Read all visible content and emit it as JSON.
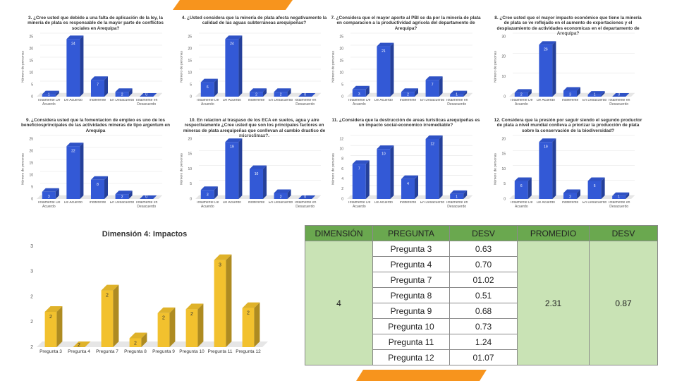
{
  "chart_data": [
    {
      "type": "bar",
      "title": "3. ¿Cree usted que debido a una falta de aplicación de la ley, la minería de plata es responsable de la mayor parte de conflictos sociales en Arequipa?",
      "y_label": "Número de personas",
      "categories": [
        "Totalmente De Acuerdo",
        "De Acuerdo",
        "Indiferente",
        "En Desacuerdo",
        "Totalmente en Desacuerdo"
      ],
      "values": [
        1,
        24,
        7,
        2,
        0
      ],
      "color": "#3359d6",
      "ylim": [
        0,
        25
      ],
      "yticks": [
        0,
        5,
        10,
        15,
        20,
        25
      ],
      "grid": true
    },
    {
      "type": "bar",
      "title": "4. ¿Usted considera que la minería de plata afecta negativamente la calidad de las aguas subterráneas arequipeñas?",
      "y_label": "Número de personas",
      "categories": [
        "Totalmente De Acuerdo",
        "De Acuerdo",
        "Indiferente",
        "En Desacuerdo",
        "Totalmente en Desacuerdo"
      ],
      "values": [
        6,
        24,
        2,
        2,
        0
      ],
      "color": "#3359d6",
      "ylim": [
        0,
        25
      ],
      "yticks": [
        0,
        5,
        10,
        15,
        20,
        25
      ],
      "grid": true
    },
    {
      "type": "bar",
      "title": "7. ¿Considera que el mayor aporte al PBI se da por la minería de plata en comparacion a la productividad agrícola del departamento de Arequipa?",
      "y_label": "Número de personas",
      "categories": [
        "Totalmente De Acuerdo",
        "De Acuerdo",
        "Indiferente",
        "En Desacuerdo",
        "Totalmente en Desacuerdo"
      ],
      "values": [
        3,
        21,
        2,
        7,
        1
      ],
      "color": "#3359d6",
      "ylim": [
        0,
        25
      ],
      "yticks": [
        0,
        5,
        10,
        15,
        20,
        25
      ],
      "grid": true
    },
    {
      "type": "bar",
      "title": "8. ¿Cree usted que el mayor impacto económico que tiene la minería de plata se ve reflejado en el aumento de exportaciones y el desplazamiento de actividades economicas en el departamento de Arequipa?",
      "y_label": "Número de personas",
      "categories": [
        "Totalmente De Acuerdo",
        "De Acuerdo",
        "Indiferente",
        "En Desacuerdo",
        "Totalmente en Desacuerdo"
      ],
      "values": [
        2,
        26,
        3,
        1,
        0
      ],
      "color": "#3359d6",
      "ylim": [
        0,
        30
      ],
      "yticks": [
        0,
        10,
        20,
        30
      ],
      "grid": true
    },
    {
      "type": "bar",
      "title": "9. ¿Considera usted que la fomentacion de empleo es uno de los beneficiosprincipales de las actividades mineras de tipo argentum en Arequipa",
      "y_label": "Número de personas",
      "categories": [
        "Totalmente De Acuerdo",
        "De Acuerdo",
        "Indiferente",
        "En Desacuerdo",
        "Totalmente en Desacuerdo"
      ],
      "values": [
        3,
        22,
        8,
        2,
        0
      ],
      "color": "#3359d6",
      "ylim": [
        0,
        25
      ],
      "yticks": [
        0,
        5,
        10,
        15,
        20,
        25
      ],
      "grid": true
    },
    {
      "type": "bar",
      "title": "10. En relacion al traspaso de los ECA en suelos, agua y aire respectivamente ¿Cree usted que son los principales factores en mineras de plata arequipeñas que conllevan al cambio drastico de microclimas?.",
      "y_label": "Número de personas",
      "categories": [
        "Totalmente De Acuerdo",
        "De Acuerdo",
        "Indiferente",
        "En Desacuerdo",
        "Totalmente en Desacuerdo"
      ],
      "values": [
        3,
        19,
        10,
        2,
        0
      ],
      "color": "#3359d6",
      "ylim": [
        0,
        20
      ],
      "yticks": [
        0,
        5,
        10,
        15,
        20
      ],
      "grid": true
    },
    {
      "type": "bar",
      "title": "11. ¿Considera que la destrucción de areas turisticas arequipeñas es un impacto social-economico irremediable?",
      "y_label": "Número de personas",
      "categories": [
        "Totalmente De Acuerdo",
        "De Acuerdo",
        "Indiferente",
        "En Desacuerdo",
        "Totalmente en Desacuerdo"
      ],
      "values": [
        7,
        10,
        4,
        12,
        1
      ],
      "color": "#3359d6",
      "ylim": [
        0,
        12
      ],
      "yticks": [
        0,
        2,
        4,
        6,
        8,
        10,
        12
      ],
      "grid": true
    },
    {
      "type": "bar",
      "title": "12. Considera que la presión por seguir siendo el segundo productor de plata a nivel mundial conlleva a priorizar la producción de plata sobre la conservación de la biodiversidad?",
      "y_label": "Número de personas",
      "categories": [
        "Totalmente De Acuerdo",
        "De Acuerdo",
        "Indiferente",
        "En Desacuerdo",
        "Totalmente en Desacuerdo"
      ],
      "values": [
        6,
        19,
        2,
        6,
        1
      ],
      "color": "#3359d6",
      "ylim": [
        0,
        20
      ],
      "yticks": [
        0,
        5,
        10,
        15,
        20
      ],
      "grid": true
    },
    {
      "type": "bar",
      "title": "Dimensión 4: Impactos",
      "categories": [
        "Pregunta 3",
        "Pregunta 4",
        "Pregunta 7",
        "Pregunta 8",
        "Pregunta 9",
        "Pregunta 10",
        "Pregunta 11",
        "Pregunta 12"
      ],
      "values": [
        2.28,
        2,
        2.45,
        2.07,
        2.27,
        2.3,
        2.69,
        2.31
      ],
      "value_labels": [
        "2",
        "2",
        "2",
        "2",
        "2",
        "2",
        "3",
        "2"
      ],
      "color": "#f2c12e",
      "ylim": [
        2,
        2.8
      ],
      "yticks": [
        {
          "value": 2,
          "label": "2"
        },
        {
          "value": 2.2,
          "label": "2"
        },
        {
          "value": 2.4,
          "label": "2"
        },
        {
          "value": 2.6,
          "label": "3"
        },
        {
          "value": 2.8,
          "label": "3"
        }
      ],
      "grid": false
    }
  ],
  "table": {
    "header": [
      "DIMENSIÓN",
      "PREGUNTA",
      "DESV",
      "PROMEDIO",
      "DESV"
    ],
    "dimension": "4",
    "promedio": "2.31",
    "desv": "0.87",
    "rows": [
      [
        "Pregunta 3",
        "0.63"
      ],
      [
        "Pregunta 4",
        "0.70"
      ],
      [
        "Pregunta 7",
        "01.02"
      ],
      [
        "Pregunta 8",
        "0.51"
      ],
      [
        "Pregunta 9",
        "0.68"
      ],
      [
        "Pregunta 10",
        "0.73"
      ],
      [
        "Pregunta 11",
        "1.24"
      ],
      [
        "Pregunta 12",
        "01.07"
      ]
    ]
  }
}
